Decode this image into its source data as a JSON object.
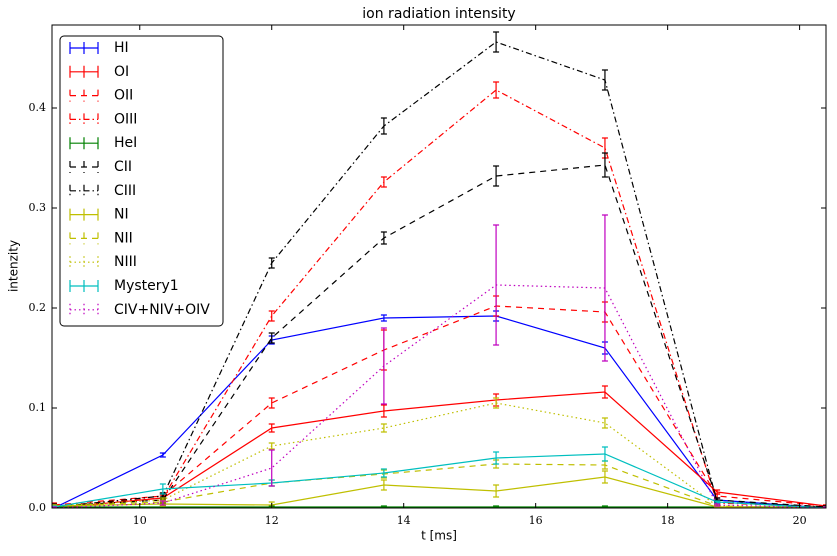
{
  "chart_data": {
    "type": "line",
    "title": "ion radiation intensity",
    "x_label": "t [ms]",
    "y_label": "intenzity",
    "x": [
      8.7,
      10.35,
      12.0,
      13.7,
      15.4,
      17.05,
      18.75,
      20.4
    ],
    "xlim": [
      8.67,
      20.4
    ],
    "ylim": [
      0,
      0.483
    ],
    "xticks": [
      10,
      12,
      14,
      16,
      18,
      20
    ],
    "yticks": [
      {
        "value": 0,
        "label": "0.0"
      },
      0.1,
      0.2,
      0.3,
      0.4
    ],
    "legend": "upper left",
    "series": [
      {
        "name": "HI",
        "color": "#0000ff",
        "linestyle": "solid",
        "values": [
          0.0,
          0.053,
          0.168,
          0.19,
          0.192,
          0.16,
          0.008,
          0.0
        ],
        "errors": [
          0.002,
          0.002,
          0.004,
          0.003,
          0.005,
          0.006,
          0.002,
          0.001
        ]
      },
      {
        "name": "OI",
        "color": "#ff0000",
        "linestyle": "solid",
        "values": [
          0.0,
          0.01,
          0.08,
          0.097,
          0.108,
          0.116,
          0.016,
          0.002
        ],
        "errors": [
          0.002,
          0.003,
          0.004,
          0.006,
          0.006,
          0.006,
          0.002,
          0.001
        ]
      },
      {
        "name": "OII",
        "color": "#ff0000",
        "linestyle": "dashed",
        "values": [
          0.003,
          0.012,
          0.105,
          0.158,
          0.202,
          0.196,
          0.012,
          0.002
        ],
        "errors": [
          0.002,
          0.003,
          0.005,
          0.02,
          0.01,
          0.01,
          0.002,
          0.001
        ]
      },
      {
        "name": "OIII",
        "color": "#ff0000",
        "linestyle": "dashdot",
        "values": [
          0.002,
          0.01,
          0.192,
          0.326,
          0.418,
          0.36,
          0.005,
          0.001
        ],
        "errors": [
          0.002,
          0.003,
          0.005,
          0.005,
          0.008,
          0.01,
          0.002,
          0.001
        ]
      },
      {
        "name": "HeI",
        "color": "#008000",
        "linestyle": "solid",
        "values": [
          0.001,
          0.001,
          0.001,
          0.001,
          0.001,
          0.001,
          0.001,
          0.001
        ],
        "errors": [
          0.001,
          0.001,
          0.001,
          0.001,
          0.001,
          0.001,
          0.001,
          0.001
        ]
      },
      {
        "name": "CII",
        "color": "#000000",
        "linestyle": "dashed",
        "values": [
          0.002,
          0.008,
          0.17,
          0.27,
          0.332,
          0.343,
          0.008,
          0.001
        ],
        "errors": [
          0.002,
          0.003,
          0.005,
          0.006,
          0.01,
          0.012,
          0.002,
          0.001
        ]
      },
      {
        "name": "CIII",
        "color": "#000000",
        "linestyle": "dashdot",
        "values": [
          0.001,
          0.012,
          0.245,
          0.382,
          0.466,
          0.428,
          0.006,
          0.001
        ],
        "errors": [
          0.002,
          0.003,
          0.005,
          0.008,
          0.01,
          0.01,
          0.002,
          0.001
        ]
      },
      {
        "name": "NI",
        "color": "#bfbf00",
        "linestyle": "solid",
        "values": [
          0.002,
          0.004,
          0.003,
          0.023,
          0.017,
          0.031,
          0.001,
          0.0
        ],
        "errors": [
          0.001,
          0.002,
          0.003,
          0.005,
          0.006,
          0.006,
          0.001,
          0.001
        ]
      },
      {
        "name": "NII",
        "color": "#bfbf00",
        "linestyle": "dashed",
        "values": [
          0.002,
          0.006,
          0.025,
          0.034,
          0.044,
          0.043,
          0.002,
          0.0
        ],
        "errors": [
          0.001,
          0.002,
          0.003,
          0.004,
          0.004,
          0.004,
          0.001,
          0.001
        ]
      },
      {
        "name": "NIII",
        "color": "#bfbf00",
        "linestyle": "dotted",
        "values": [
          0.002,
          0.008,
          0.062,
          0.08,
          0.105,
          0.085,
          0.002,
          0.0
        ],
        "errors": [
          0.001,
          0.002,
          0.003,
          0.004,
          0.005,
          0.005,
          0.001,
          0.001
        ]
      },
      {
        "name": "Mystery1",
        "color": "#00bfbf",
        "linestyle": "solid",
        "values": [
          0.001,
          0.019,
          0.025,
          0.035,
          0.05,
          0.054,
          0.006,
          0.0
        ],
        "errors": [
          0.001,
          0.005,
          0.003,
          0.004,
          0.006,
          0.007,
          0.001,
          0.001
        ]
      },
      {
        "name": "CIV+NIV+OIV",
        "color": "#bf00bf",
        "linestyle": "dotted",
        "values": [
          0.0,
          0.005,
          0.04,
          0.142,
          0.223,
          0.22,
          0.003,
          0.0
        ],
        "errors": [
          0.001,
          0.002,
          0.018,
          0.038,
          0.06,
          0.073,
          0.001,
          0.001
        ]
      }
    ]
  }
}
